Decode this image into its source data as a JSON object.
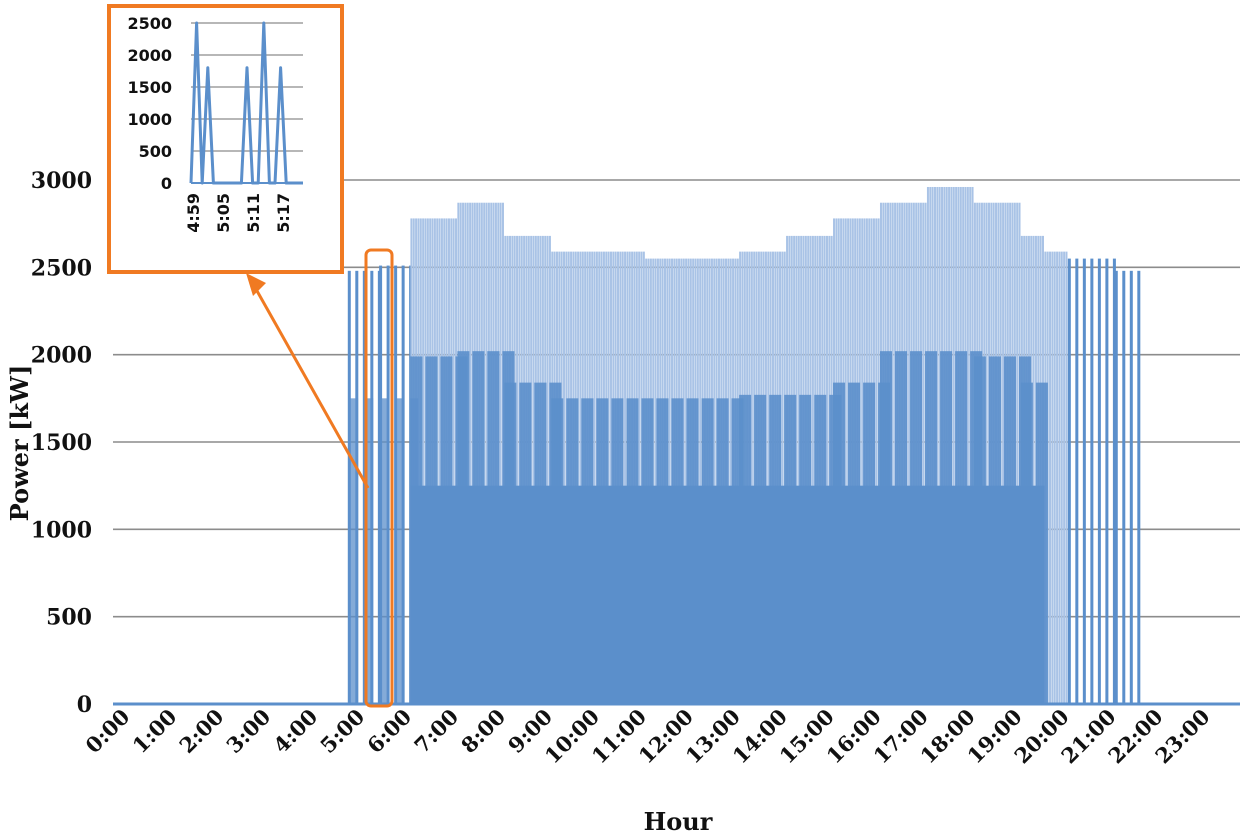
{
  "chart_data": {
    "type": "bar",
    "title": "",
    "xlabel": "Hour",
    "ylabel": "Power [kW]",
    "ylim": [
      0,
      3000
    ],
    "yticks": [
      0,
      500,
      1000,
      1500,
      2000,
      2500,
      3000
    ],
    "x_ticks": [
      "0:00",
      "1:00",
      "2:00",
      "3:00",
      "4:00",
      "5:00",
      "6:00",
      "7:00",
      "8:00",
      "9:00",
      "10:00",
      "11:00",
      "12:00",
      "13:00",
      "14:00",
      "15:00",
      "16:00",
      "17:00",
      "18:00",
      "19:00",
      "20:00",
      "21:00",
      "22:00",
      "23:00"
    ],
    "grid": true,
    "legend": "none",
    "series_color": "#5b8fcb",
    "light_color": "#a9c3e6",
    "peak_envelope": [
      {
        "start": "5:00",
        "end": "5:40",
        "value": 2480,
        "sparse": true
      },
      {
        "start": "5:40",
        "end": "6:20",
        "value": 2510,
        "sparse": true
      },
      {
        "start": "6:20",
        "end": "7:20",
        "value": 2780
      },
      {
        "start": "7:20",
        "end": "8:20",
        "value": 2870
      },
      {
        "start": "8:20",
        "end": "9:20",
        "value": 2680
      },
      {
        "start": "9:20",
        "end": "11:20",
        "value": 2590
      },
      {
        "start": "11:20",
        "end": "13:20",
        "value": 2550
      },
      {
        "start": "13:20",
        "end": "14:20",
        "value": 2590
      },
      {
        "start": "14:20",
        "end": "15:20",
        "value": 2680
      },
      {
        "start": "15:20",
        "end": "16:20",
        "value": 2780
      },
      {
        "start": "16:20",
        "end": "17:20",
        "value": 2870
      },
      {
        "start": "17:20",
        "end": "18:20",
        "value": 2960
      },
      {
        "start": "18:20",
        "end": "19:20",
        "value": 2870
      },
      {
        "start": "19:20",
        "end": "19:50",
        "value": 2680
      },
      {
        "start": "19:50",
        "end": "20:20",
        "value": 2590
      },
      {
        "start": "20:20",
        "end": "21:20",
        "value": 2550,
        "sparse": true
      },
      {
        "start": "21:20",
        "end": "21:50",
        "value": 2480,
        "sparse": true
      }
    ],
    "secondary_envelope": [
      {
        "start": "5:00",
        "end": "6:20",
        "value": 1750,
        "sparse": true
      },
      {
        "start": "6:20",
        "end": "7:20",
        "value": 1990
      },
      {
        "start": "7:20",
        "end": "8:20",
        "value": 2020
      },
      {
        "start": "8:20",
        "end": "9:20",
        "value": 1840
      },
      {
        "start": "9:20",
        "end": "13:20",
        "value": 1750
      },
      {
        "start": "13:20",
        "end": "15:20",
        "value": 1770
      },
      {
        "start": "15:20",
        "end": "16:20",
        "value": 1840
      },
      {
        "start": "16:20",
        "end": "18:20",
        "value": 2020
      },
      {
        "start": "18:20",
        "end": "19:20",
        "value": 1990
      },
      {
        "start": "19:20",
        "end": "19:50",
        "value": 1840
      }
    ],
    "solid_fill_value": 1250,
    "inset": {
      "type": "line",
      "x_ticks": [
        "4:59",
        "5:05",
        "5:11",
        "5:17"
      ],
      "yticks": [
        0,
        500,
        1000,
        1500,
        2000,
        2500
      ],
      "ylim": [
        0,
        2500
      ],
      "x_minutes": [
        0,
        1,
        2,
        3,
        4,
        5,
        6,
        7,
        8,
        9,
        10,
        11,
        12,
        13,
        14,
        15,
        16,
        17,
        18,
        19,
        20
      ],
      "values": [
        0,
        2500,
        0,
        1800,
        0,
        0,
        0,
        0,
        0,
        0,
        1800,
        0,
        0,
        2500,
        0,
        0,
        1800,
        0,
        0,
        0,
        0
      ],
      "highlight_color": "#f07a22"
    }
  }
}
